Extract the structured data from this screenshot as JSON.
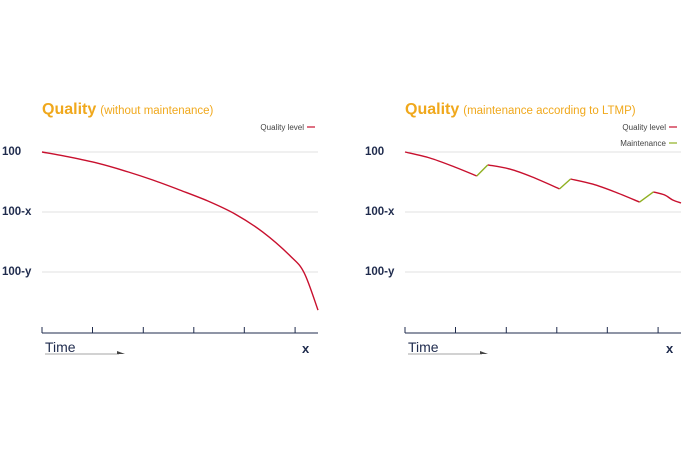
{
  "colors": {
    "title": "#f0a81c",
    "quality_line": "#c8102e",
    "maintenance_line": "#8fb021",
    "axis": "#1f2b4d",
    "grid": "#d9d9d9"
  },
  "chart_data": [
    {
      "type": "line",
      "title": "Quality",
      "subtitle": "(without maintenance)",
      "xlabel": "Time",
      "x_end_label": "x",
      "y_tick_labels": [
        "100",
        "100-x",
        "100-y"
      ],
      "y_tick_values": [
        100,
        80,
        60
      ],
      "ylim": [
        40,
        100
      ],
      "xlim": [
        0,
        1
      ],
      "x_ticks": [
        0,
        0.183,
        0.367,
        0.55,
        0.733,
        0.917
      ],
      "legend": [
        {
          "name": "Quality level",
          "color": "#c8102e"
        }
      ],
      "series": [
        {
          "name": "Quality level",
          "color": "#c8102e",
          "x": [
            0,
            0.1,
            0.2,
            0.3,
            0.4,
            0.5,
            0.6,
            0.7,
            0.8,
            0.9,
            0.95,
            1.0
          ],
          "y": [
            100,
            98.3,
            96.3,
            93.7,
            90.7,
            87.3,
            83.7,
            79.3,
            73.3,
            65.3,
            59.7,
            47.3
          ]
        }
      ]
    },
    {
      "type": "line",
      "title": "Quality",
      "subtitle": "(maintenance according to LTMP)",
      "xlabel": "Time",
      "x_end_label": "x",
      "y_tick_labels": [
        "100",
        "100-x",
        "100-y"
      ],
      "y_tick_values": [
        100,
        80,
        60
      ],
      "ylim": [
        40,
        100
      ],
      "xlim": [
        0,
        1
      ],
      "x_ticks": [
        0,
        0.183,
        0.367,
        0.55,
        0.733,
        0.917
      ],
      "legend": [
        {
          "name": "Quality level",
          "color": "#c8102e"
        },
        {
          "name": "Maintenance",
          "color": "#8fb021"
        }
      ],
      "series": [
        {
          "name": "Quality level",
          "color": "#c8102e",
          "segments": [
            {
              "x": [
                0,
                0.09,
                0.18,
                0.26
              ],
              "y": [
                100,
                98,
                95,
                92
              ]
            },
            {
              "x": [
                0.3,
                0.38,
                0.46,
                0.56
              ],
              "y": [
                95.7,
                94.3,
                91.7,
                87.7
              ]
            },
            {
              "x": [
                0.6,
                0.68,
                0.76,
                0.85
              ],
              "y": [
                91,
                89.3,
                86.7,
                83.3
              ]
            },
            {
              "x": [
                0.9,
                0.94,
                0.97,
                1.0
              ],
              "y": [
                86.7,
                85.7,
                84,
                83
              ]
            }
          ]
        },
        {
          "name": "Maintenance",
          "color": "#8fb021",
          "segments": [
            {
              "x": [
                0.26,
                0.3
              ],
              "y": [
                92,
                95.7
              ]
            },
            {
              "x": [
                0.56,
                0.6
              ],
              "y": [
                87.7,
                91
              ]
            },
            {
              "x": [
                0.85,
                0.9
              ],
              "y": [
                83.3,
                86.7
              ]
            }
          ]
        }
      ]
    }
  ]
}
